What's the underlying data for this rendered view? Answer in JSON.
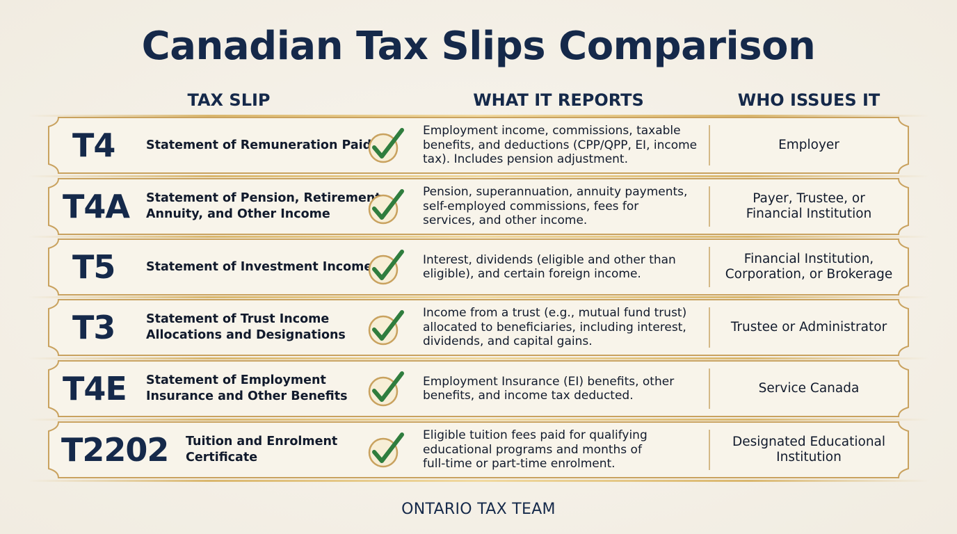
{
  "title": "Canadian Tax Slips Comparison",
  "columns": {
    "slip": "TAX SLIP",
    "reports": "WHAT IT REPORTS",
    "issuer": "WHO ISSUES IT"
  },
  "rows": [
    {
      "code": "T4",
      "name": "Statement of Remuneration Paid",
      "reports": "Employment income, commissions, taxable\nbenefits, and deductions (CPP/QPP, EI, income\ntax). Includes pension adjustment.",
      "issuer": "Employer"
    },
    {
      "code": "T4A",
      "name": "Statement of Pension, Retirement,\nAnnuity, and Other Income",
      "reports": "Pension, superannuation, annuity payments,\nself-employed commissions, fees for\nservices, and other income.",
      "issuer": "Payer, Trustee, or\nFinancial Institution"
    },
    {
      "code": "T5",
      "name": "Statement of Investment Income",
      "reports": "Interest, dividends (eligible and other than\neligible), and certain foreign income.",
      "issuer": "Financial Institution,\nCorporation, or Brokerage"
    },
    {
      "code": "T3",
      "name": "Statement of Trust Income\nAllocations and Designations",
      "reports": "Income from a trust (e.g., mutual fund trust)\nallocated to beneficiaries, including interest,\ndividends, and capital gains.",
      "issuer": "Trustee or Administrator"
    },
    {
      "code": "T4E",
      "name": "Statement of Employment\nInsurance and Other Benefits",
      "reports": "Employment Insurance (EI) benefits, other\nbenefits, and income tax deducted.",
      "issuer": "Service Canada"
    },
    {
      "code": "T2202",
      "name": "Tuition and Enrolment\nCertificate",
      "reports": "Eligible tuition fees paid for qualifying\neducational programs and months of\nfull-time or part-time enrolment.",
      "issuer": "Designated Educational\nInstitution"
    }
  ],
  "footer": "ONTARIO TAX TEAM",
  "colors": {
    "navy": "#15294a",
    "gold": "#c5a05c",
    "check_green": "#2f7d3e",
    "background": "#f4f0e6"
  },
  "icons": {
    "row_marker": "checkmark-icon"
  }
}
